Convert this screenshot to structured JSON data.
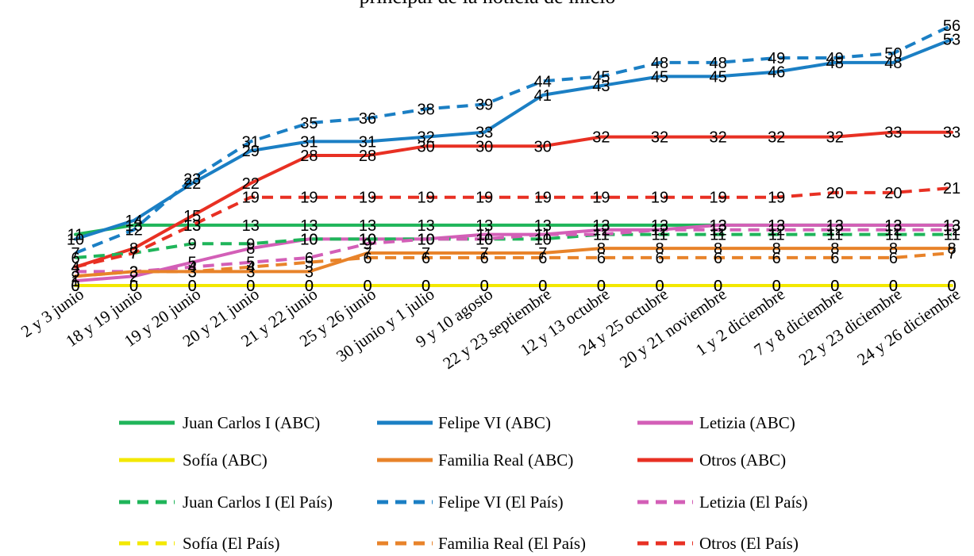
{
  "chart_data": {
    "type": "line",
    "title": "principal de la noticia de inicio",
    "categories": [
      "2 y 3 junio",
      "18 y 19 junio",
      "19 y 20 junio",
      "20 y 21 junio",
      "21 y 22 junio",
      "25 y 26 junio",
      "30 junio y 1 julio",
      "9 y 10 agosto",
      "22 y 23 septiembre",
      "12 y 13 octubre",
      "24 y 25 octubre",
      "20 y 21 noviembre",
      "1 y 2 diciembre",
      "7 y 8 diciembre",
      "22 y 23 diciembre",
      "24 y 26 diciembre"
    ],
    "ylim": [
      0,
      56
    ],
    "grid": false,
    "legend_position": "bottom",
    "series": [
      {
        "name": "Juan Carlos I (ABC)",
        "color": "#1fb55a",
        "dash": "solid",
        "values": [
          11,
          13,
          13,
          13,
          13,
          13,
          13,
          13,
          13,
          13,
          13,
          13,
          13,
          13,
          13,
          13
        ]
      },
      {
        "name": "Felipe VI (ABC)",
        "color": "#1b7fc4",
        "dash": "solid",
        "values": [
          10,
          14,
          22,
          29,
          31,
          31,
          32,
          33,
          41,
          43,
          45,
          45,
          46,
          48,
          48,
          53
        ]
      },
      {
        "name": "Letizia (ABC)",
        "color": "#d35fb7",
        "dash": "solid",
        "values": [
          1,
          2,
          5,
          8,
          10,
          10,
          10,
          11,
          11,
          12,
          12,
          13,
          13,
          13,
          13,
          13
        ]
      },
      {
        "name": "Sofía (ABC)",
        "color": "#f3e800",
        "dash": "solid",
        "values": [
          0,
          0,
          0,
          0,
          0,
          0,
          0,
          0,
          0,
          0,
          0,
          0,
          0,
          0,
          0,
          0
        ]
      },
      {
        "name": "Familia Real (ABC)",
        "color": "#e8832a",
        "dash": "solid",
        "values": [
          2,
          3,
          3,
          3,
          3,
          7,
          7,
          7,
          7,
          8,
          8,
          8,
          8,
          8,
          8,
          8
        ]
      },
      {
        "name": "Otros (ABC)",
        "color": "#e83023",
        "dash": "solid",
        "values": [
          4,
          8,
          15,
          22,
          28,
          28,
          30,
          30,
          30,
          32,
          32,
          32,
          32,
          32,
          33,
          33
        ]
      },
      {
        "name": "Juan Carlos I (El País)",
        "color": "#1fb55a",
        "dash": "dashed",
        "values": [
          6,
          7,
          9,
          9,
          10,
          10,
          10,
          10,
          10,
          11,
          11,
          11,
          11,
          11,
          11,
          11
        ]
      },
      {
        "name": "Felipe VI (El País)",
        "color": "#1b7fc4",
        "dash": "dashed",
        "values": [
          7,
          12,
          23,
          31,
          35,
          36,
          38,
          39,
          44,
          45,
          48,
          48,
          49,
          49,
          50,
          56
        ]
      },
      {
        "name": "Letizia (El País)",
        "color": "#d35fb7",
        "dash": "dashed",
        "values": [
          3,
          3,
          4,
          5,
          6,
          9,
          10,
          10,
          11,
          11,
          12,
          12,
          12,
          12,
          12,
          12
        ]
      },
      {
        "name": "Sofía (El País)",
        "color": "#f3e800",
        "dash": "dashed",
        "values": [
          0,
          0,
          0,
          0,
          0,
          0,
          0,
          0,
          0,
          0,
          0,
          0,
          0,
          0,
          0,
          0
        ]
      },
      {
        "name": "Familia Real (El País)",
        "color": "#e8832a",
        "dash": "dashed",
        "values": [
          2,
          3,
          3,
          4,
          5,
          6,
          6,
          6,
          6,
          6,
          6,
          6,
          6,
          6,
          6,
          7
        ]
      },
      {
        "name": "Otros (El País)",
        "color": "#e83023",
        "dash": "dashed",
        "values": [
          4,
          7,
          13,
          19,
          19,
          19,
          19,
          19,
          19,
          19,
          19,
          19,
          19,
          20,
          20,
          21
        ]
      }
    ]
  }
}
